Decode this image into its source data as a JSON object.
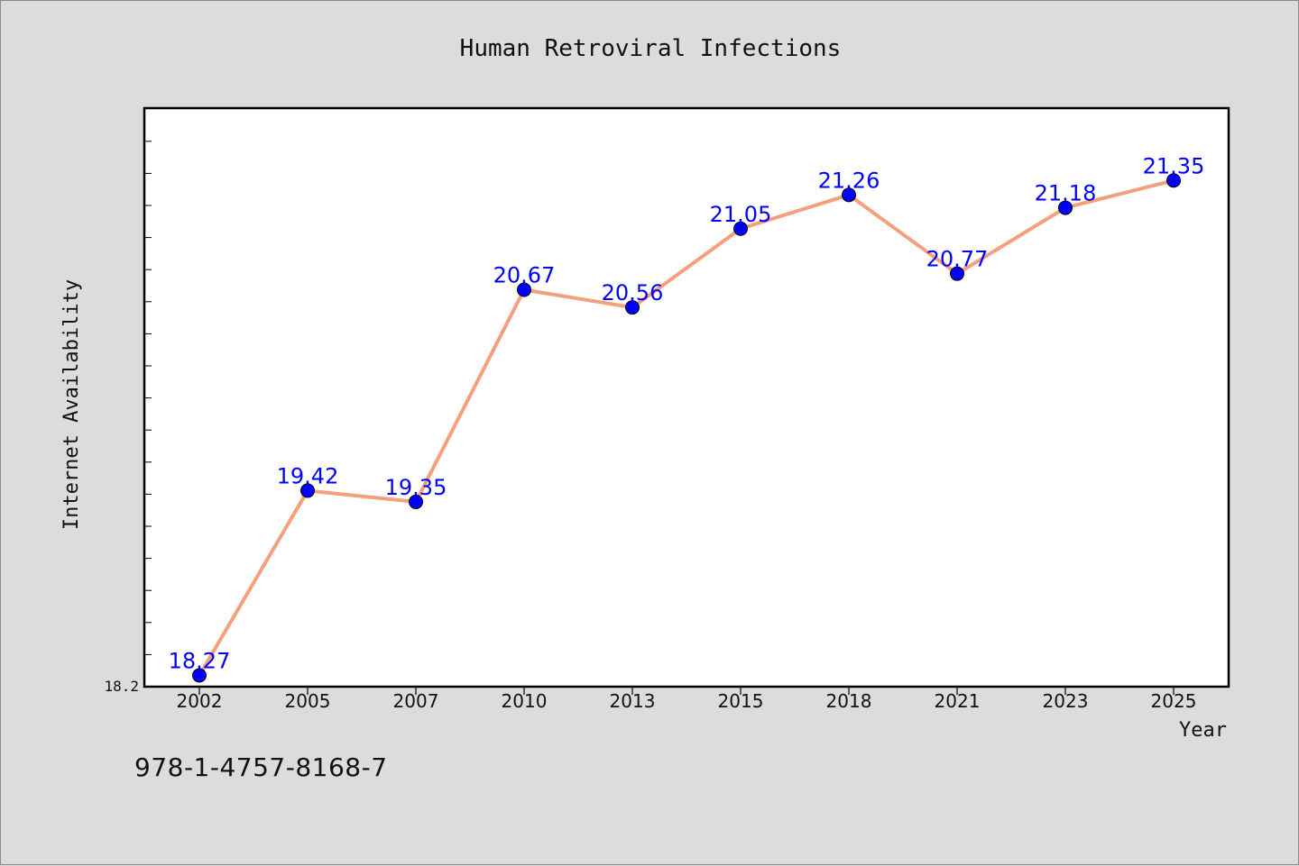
{
  "chart_data": {
    "type": "line",
    "title": "Human Retroviral Infections",
    "xlabel": "Year",
    "ylabel": "Internet Availability",
    "categories": [
      "2002",
      "2005",
      "2007",
      "2010",
      "2013",
      "2015",
      "2018",
      "2021",
      "2023",
      "2025"
    ],
    "series": [
      {
        "values": [
          18.27,
          19.42,
          19.35,
          20.67,
          20.56,
          21.05,
          21.26,
          20.77,
          21.18,
          21.35
        ],
        "data_labels": [
          "18.27",
          "19.42",
          "19.35",
          "20.67",
          "20.56",
          "21.05",
          "21.26",
          "20.77",
          "21.18",
          "21.35"
        ],
        "line_color": "#f4a07c",
        "marker_color": "#0000ff"
      }
    ],
    "ylim": [
      18.2,
      21.8
    ],
    "y_tick_labels": [
      "18.2"
    ],
    "grid": false,
    "legend": "none",
    "label_color": "#0000ff"
  },
  "footer": {
    "isbn": "978-1-4757-8168-7"
  }
}
